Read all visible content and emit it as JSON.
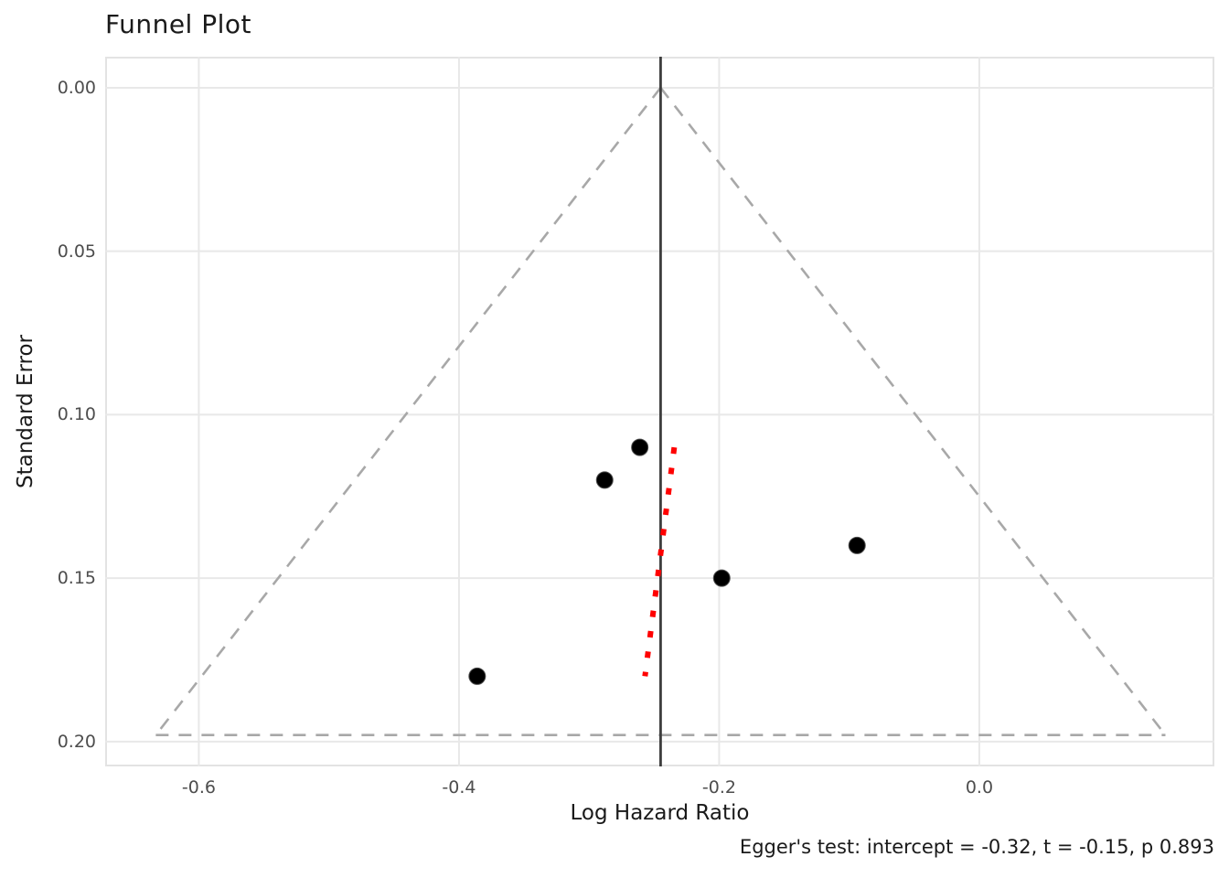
{
  "title": "Funnel Plot",
  "caption": "Egger's test: intercept = -0.32, t = -0.15, p 0.893",
  "colors": {
    "background": "#ffffff",
    "panel_border": "#e3e3e3",
    "gridline": "#e8e8e8",
    "funnel_dash": "#a8a8a8",
    "mean_line": "#3d3d3d",
    "egger_line": "#ff0000",
    "point_fill": "#000000",
    "point_edge": "#4d4d4d",
    "tick_label": "#4d4d4d",
    "text": "#1a1a1a"
  },
  "chart_data": {
    "type": "scatter",
    "title": "Funnel Plot",
    "xlabel": "Log Hazard Ratio",
    "ylabel": "Standard Error",
    "xlim": [
      -0.672,
      0.1807
    ],
    "ylim": [
      -0.0095,
      0.2076
    ],
    "y_inverted": true,
    "grid": true,
    "x_ticks": [
      {
        "value": -0.6,
        "label": "-0.6"
      },
      {
        "value": -0.4,
        "label": "-0.4"
      },
      {
        "value": -0.2,
        "label": "-0.2"
      },
      {
        "value": 0.0,
        "label": "0.0"
      }
    ],
    "y_ticks": [
      {
        "value": 0.0,
        "label": "0.00"
      },
      {
        "value": 0.05,
        "label": "0.05"
      },
      {
        "value": 0.1,
        "label": "0.10"
      },
      {
        "value": 0.15,
        "label": "0.15"
      },
      {
        "value": 0.2,
        "label": "0.20"
      }
    ],
    "points": [
      {
        "log_hr": -0.261,
        "se": 0.11
      },
      {
        "log_hr": -0.288,
        "se": 0.12
      },
      {
        "log_hr": -0.094,
        "se": 0.14
      },
      {
        "log_hr": -0.198,
        "se": 0.15
      },
      {
        "log_hr": -0.386,
        "se": 0.18
      }
    ],
    "mean_effect": -0.245,
    "funnel": {
      "apex_x": -0.245,
      "apex_se": 0.0,
      "se_max": 0.198,
      "z": 1.96
    },
    "egger_line": {
      "x1": -0.2345,
      "se1": 0.11,
      "x2": -0.257,
      "se2": 0.18
    },
    "egger_test": {
      "intercept": -0.32,
      "t": -0.15,
      "p": 0.893
    }
  }
}
